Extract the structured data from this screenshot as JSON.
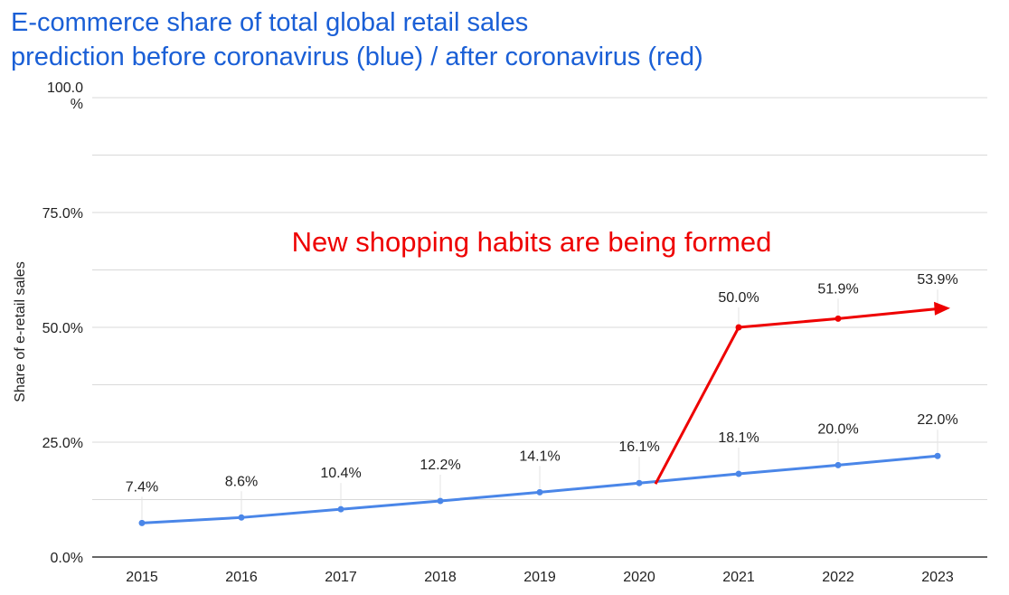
{
  "title_lines": [
    "E-commerce share of total global retail sales",
    "prediction before coronavirus (blue) / after coronavirus (red)"
  ],
  "colors": {
    "title": "#1a5fd6",
    "before": "#4a86e8",
    "after": "#ee0000",
    "grid": "#d9d9d9",
    "axis": "#333333"
  },
  "chart_data": {
    "type": "line",
    "title": "E-commerce share of total global retail sales prediction before coronavirus (blue) / after coronavirus (red)",
    "xlabel": "",
    "ylabel": "Share of e-retail sales",
    "ylim": [
      0,
      100
    ],
    "yticks": [
      "0.0%",
      "25.0%",
      "50.0%",
      "75.0%",
      "100.0 %"
    ],
    "ytick_values": [
      0,
      25,
      50,
      75,
      100
    ],
    "categories": [
      "2015",
      "2016",
      "2017",
      "2018",
      "2019",
      "2020",
      "2021",
      "2022",
      "2023"
    ],
    "grid": true,
    "legend": "none",
    "series": [
      {
        "color": "#4a86e8",
        "x": [
          "2015",
          "2016",
          "2017",
          "2018",
          "2019",
          "2020",
          "2021",
          "2022",
          "2023"
        ],
        "values": [
          7.4,
          8.6,
          10.4,
          12.2,
          14.1,
          16.1,
          18.1,
          20.0,
          22.0
        ],
        "labels": [
          "7.4%",
          "8.6%",
          "10.4%",
          "12.2%",
          "14.1%",
          "16.1%",
          "18.1%",
          "20.0%",
          "22.0%"
        ]
      },
      {
        "color": "#ee0000",
        "x": [
          "2020",
          "2021",
          "2022",
          "2023"
        ],
        "values": [
          16.1,
          50.0,
          51.9,
          53.9
        ],
        "labels": [
          "",
          "50.0%",
          "51.9%",
          "53.9%"
        ]
      }
    ],
    "annotations": [
      "New shopping habits are being formed"
    ]
  }
}
